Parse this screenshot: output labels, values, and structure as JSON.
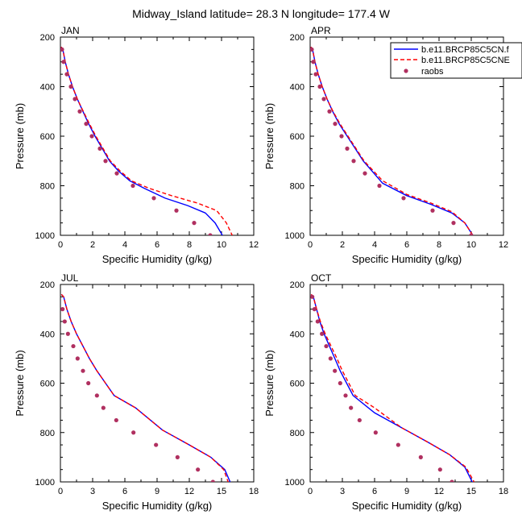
{
  "figure": {
    "title": "Midway_Island  latitude= 28.3 N longitude= 177.4 W"
  },
  "colors": {
    "series1": "#0000ff",
    "series2": "#ff0000",
    "raobs": "#b03060"
  },
  "legend": {
    "entries": [
      "b.e11.BRCP85C5CN.f",
      "b.e11.BRCP85C5CNE",
      "raobs"
    ]
  },
  "chart_data": [
    {
      "type": "line",
      "panel": "JAN",
      "title": "JAN",
      "xlabel": "Specific Humidity (g/kg)",
      "ylabel": "Pressure (mb)",
      "xlim": [
        0,
        12
      ],
      "ylim": [
        1000,
        200
      ],
      "xticks": [
        0,
        2,
        4,
        6,
        8,
        10,
        12
      ],
      "yticks": [
        200,
        400,
        600,
        800,
        1000
      ],
      "series": [
        {
          "name": "b.e11.BRCP85C5CN.f",
          "style": "solid",
          "color": "#0000ff",
          "x": [
            0.05,
            0.15,
            0.3,
            0.5,
            0.75,
            1.05,
            1.4,
            1.75,
            2.15,
            2.6,
            3.05,
            3.6,
            4.3,
            5.2,
            6.5,
            7.9,
            9.0,
            9.6,
            10.1
          ],
          "y": [
            240,
            250,
            300,
            350,
            400,
            450,
            500,
            550,
            600,
            650,
            700,
            740,
            780,
            810,
            850,
            880,
            910,
            950,
            1005
          ]
        },
        {
          "name": "b.e11.BRCP85C5CNE",
          "style": "dashed",
          "color": "#ff0000",
          "x": [
            0.05,
            0.15,
            0.3,
            0.5,
            0.75,
            1.05,
            1.42,
            1.8,
            2.2,
            2.65,
            3.1,
            3.7,
            4.4,
            5.5,
            6.9,
            8.5,
            9.7,
            10.3,
            10.7
          ],
          "y": [
            240,
            250,
            300,
            350,
            400,
            450,
            500,
            550,
            600,
            650,
            700,
            740,
            780,
            810,
            840,
            870,
            900,
            950,
            1005
          ]
        }
      ],
      "raobs": {
        "name": "raobs",
        "x": [
          0.1,
          0.2,
          0.4,
          0.65,
          0.9,
          1.2,
          1.6,
          1.95,
          2.45,
          2.8,
          3.5,
          4.5,
          5.8,
          7.2,
          8.3,
          9.3
        ],
        "y": [
          250,
          300,
          350,
          400,
          450,
          500,
          550,
          600,
          650,
          700,
          750,
          800,
          850,
          900,
          950,
          1000
        ]
      }
    },
    {
      "type": "line",
      "panel": "APR",
      "title": "APR",
      "xlabel": "Specific Humidity (g/kg)",
      "ylabel": "Pressure (mb)",
      "xlim": [
        0,
        12
      ],
      "ylim": [
        1000,
        200
      ],
      "xticks": [
        0,
        2,
        4,
        6,
        8,
        10,
        12
      ],
      "yticks": [
        200,
        400,
        600,
        800,
        1000
      ],
      "series": [
        {
          "name": "b.e11.BRCP85C5CN.f",
          "style": "solid",
          "color": "#0000ff",
          "x": [
            0.05,
            0.15,
            0.3,
            0.5,
            0.75,
            1.05,
            1.4,
            1.8,
            2.3,
            2.8,
            3.3,
            4.5,
            6.0,
            7.5,
            8.8,
            9.6,
            10.2
          ],
          "y": [
            240,
            250,
            300,
            350,
            400,
            450,
            500,
            550,
            600,
            650,
            700,
            790,
            840,
            875,
            910,
            950,
            1010
          ]
        },
        {
          "name": "b.e11.BRCP85C5CNE",
          "style": "dashed",
          "color": "#ff0000",
          "x": [
            0.05,
            0.15,
            0.3,
            0.5,
            0.75,
            1.05,
            1.42,
            1.85,
            2.35,
            2.85,
            3.35,
            4.5,
            6.0,
            7.5,
            8.8,
            9.6,
            10.2
          ],
          "y": [
            240,
            250,
            300,
            350,
            400,
            450,
            500,
            550,
            600,
            650,
            700,
            780,
            835,
            870,
            905,
            950,
            1010
          ]
        }
      ],
      "raobs": {
        "name": "raobs",
        "x": [
          0.1,
          0.2,
          0.35,
          0.6,
          0.85,
          1.2,
          1.55,
          1.95,
          2.3,
          2.7,
          3.4,
          4.3,
          5.8,
          7.6,
          8.9,
          10.0
        ],
        "y": [
          250,
          300,
          350,
          400,
          450,
          500,
          550,
          600,
          650,
          700,
          750,
          800,
          850,
          900,
          950,
          1000
        ]
      }
    },
    {
      "type": "line",
      "panel": "JUL",
      "title": "JUL",
      "xlabel": "Specific Humidity (g/kg)",
      "ylabel": "Pressure (mb)",
      "xlim": [
        0,
        18
      ],
      "ylim": [
        1000,
        200
      ],
      "xticks": [
        0,
        3,
        6,
        9,
        12,
        15,
        18
      ],
      "yticks": [
        200,
        400,
        600,
        800,
        1000
      ],
      "series": [
        {
          "name": "b.e11.BRCP85C5CN.f",
          "style": "solid",
          "color": "#0000ff",
          "x": [
            0.1,
            0.3,
            0.6,
            1.0,
            1.5,
            2.1,
            2.7,
            3.4,
            4.2,
            5.0,
            7.0,
            9.5,
            12.0,
            14.0,
            15.3,
            15.9
          ],
          "y": [
            240,
            250,
            300,
            350,
            400,
            450,
            500,
            550,
            600,
            650,
            700,
            790,
            850,
            900,
            950,
            1010
          ]
        },
        {
          "name": "b.e11.BRCP85C5CNE",
          "style": "dashed",
          "color": "#ff0000",
          "x": [
            0.1,
            0.3,
            0.6,
            1.0,
            1.5,
            2.1,
            2.7,
            3.4,
            4.2,
            5.0,
            7.0,
            9.5,
            12.0,
            14.0,
            15.2,
            15.7
          ],
          "y": [
            240,
            250,
            300,
            350,
            400,
            450,
            500,
            550,
            600,
            650,
            700,
            790,
            850,
            900,
            950,
            1010
          ]
        }
      ],
      "raobs": {
        "name": "raobs",
        "x": [
          0.2,
          0.4,
          0.7,
          1.2,
          1.6,
          2.1,
          2.6,
          3.4,
          4.0,
          5.2,
          6.8,
          8.9,
          10.9,
          12.8,
          14.2
        ],
        "y": [
          300,
          350,
          400,
          450,
          500,
          550,
          600,
          650,
          700,
          750,
          800,
          850,
          900,
          950,
          1000
        ]
      }
    },
    {
      "type": "line",
      "panel": "OCT",
      "title": "OCT",
      "xlabel": "Specific Humidity (g/kg)",
      "ylabel": "Pressure (mb)",
      "xlim": [
        0,
        18
      ],
      "ylim": [
        1000,
        200
      ],
      "xticks": [
        0,
        3,
        6,
        9,
        12,
        15,
        18
      ],
      "yticks": [
        200,
        400,
        600,
        800,
        1000
      ],
      "series": [
        {
          "name": "b.e11.BRCP85C5CN.f",
          "style": "solid",
          "color": "#0000ff",
          "x": [
            0.1,
            0.3,
            0.6,
            0.9,
            1.3,
            1.8,
            2.3,
            2.8,
            3.4,
            4.0,
            6.0,
            8.5,
            11.0,
            13.0,
            14.4,
            15.2
          ],
          "y": [
            240,
            250,
            300,
            350,
            400,
            450,
            500,
            550,
            600,
            650,
            720,
            780,
            840,
            890,
            940,
            1010
          ]
        },
        {
          "name": "b.e11.BRCP85C5CNE",
          "style": "dashed",
          "color": "#ff0000",
          "x": [
            0.1,
            0.3,
            0.6,
            0.95,
            1.4,
            1.95,
            2.5,
            3.0,
            3.6,
            4.2,
            6.0,
            8.5,
            11.0,
            13.0,
            14.5,
            15.4
          ],
          "y": [
            240,
            250,
            300,
            350,
            400,
            450,
            500,
            550,
            600,
            650,
            700,
            780,
            840,
            890,
            940,
            1010
          ]
        }
      ],
      "raobs": {
        "name": "raobs",
        "x": [
          0.2,
          0.4,
          0.7,
          1.1,
          1.5,
          1.9,
          2.3,
          2.8,
          3.3,
          3.8,
          4.6,
          6.1,
          8.2,
          10.3,
          12.1,
          13.2
        ],
        "y": [
          250,
          300,
          350,
          400,
          450,
          500,
          550,
          600,
          650,
          700,
          750,
          800,
          850,
          900,
          950,
          1000
        ]
      }
    }
  ]
}
